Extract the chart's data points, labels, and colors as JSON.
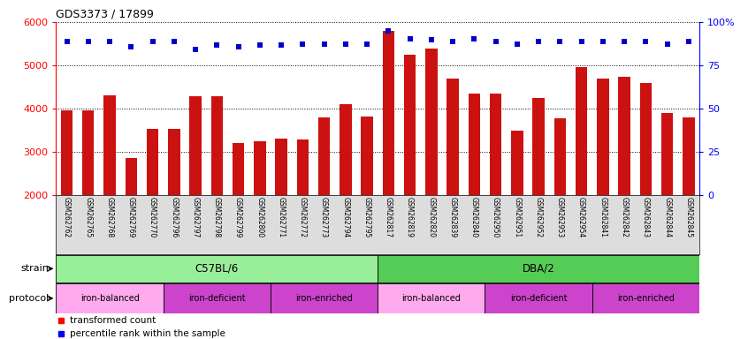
{
  "title": "GDS3373 / 17899",
  "samples": [
    "GSM262762",
    "GSM262765",
    "GSM262768",
    "GSM262769",
    "GSM262770",
    "GSM262796",
    "GSM262797",
    "GSM262798",
    "GSM262799",
    "GSM262800",
    "GSM262771",
    "GSM262772",
    "GSM262773",
    "GSM262794",
    "GSM262795",
    "GSM262817",
    "GSM262819",
    "GSM262820",
    "GSM262839",
    "GSM262840",
    "GSM262950",
    "GSM262951",
    "GSM262952",
    "GSM262953",
    "GSM262954",
    "GSM262841",
    "GSM262842",
    "GSM262843",
    "GSM262844",
    "GSM262845"
  ],
  "bar_values": [
    3950,
    3950,
    4300,
    2850,
    3520,
    3520,
    4280,
    4280,
    3200,
    3250,
    3300,
    3280,
    3800,
    4100,
    3820,
    5800,
    5250,
    5380,
    4700,
    4350,
    4350,
    3480,
    4250,
    3780,
    4950,
    4700,
    4730,
    4600,
    3900,
    3800
  ],
  "percentile_values": [
    5560,
    5560,
    5540,
    5420,
    5560,
    5560,
    5360,
    5460,
    5430,
    5460,
    5460,
    5490,
    5490,
    5490,
    5490,
    5790,
    5620,
    5590,
    5560,
    5620,
    5560,
    5490,
    5560,
    5560,
    5560,
    5560,
    5560,
    5560,
    5490,
    5560
  ],
  "bar_color": "#cc1111",
  "dot_color": "#0000cc",
  "ylim_left": [
    2000,
    6000
  ],
  "ylim_right": [
    0,
    100
  ],
  "yticks_left": [
    2000,
    3000,
    4000,
    5000,
    6000
  ],
  "yticks_right": [
    0,
    25,
    50,
    75,
    100
  ],
  "strain_groups": [
    {
      "label": "C57BL/6",
      "start": 0,
      "end": 15,
      "color": "#99ee99"
    },
    {
      "label": "DBA/2",
      "start": 15,
      "end": 30,
      "color": "#55cc55"
    }
  ],
  "protocol_groups": [
    {
      "label": "iron-balanced",
      "start": 0,
      "end": 5,
      "color": "#ffaaee"
    },
    {
      "label": "iron-deficient",
      "start": 5,
      "end": 10,
      "color": "#cc44cc"
    },
    {
      "label": "iron-enriched",
      "start": 10,
      "end": 15,
      "color": "#cc44cc"
    },
    {
      "label": "iron-balanced",
      "start": 15,
      "end": 20,
      "color": "#ffaaee"
    },
    {
      "label": "iron-deficient",
      "start": 20,
      "end": 25,
      "color": "#cc44cc"
    },
    {
      "label": "iron-enriched",
      "start": 25,
      "end": 30,
      "color": "#cc44cc"
    }
  ]
}
